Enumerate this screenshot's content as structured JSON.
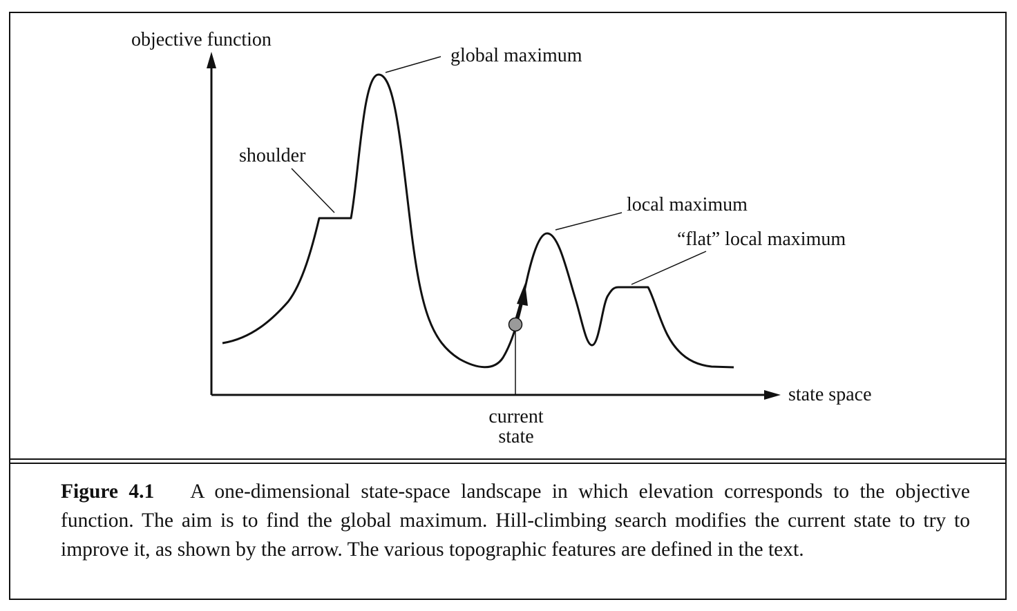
{
  "diagram": {
    "y_axis_label": "objective function",
    "x_axis_label": "state space",
    "annotations": {
      "global_maximum": "global maximum",
      "shoulder": "shoulder",
      "local_maximum": "local maximum",
      "flat_local_maximum": "“flat” local maximum",
      "current_state_line1": "current",
      "current_state_line2": "state"
    },
    "colors": {
      "ink": "#111111",
      "current_state_marker": "#9a9a9a"
    }
  },
  "caption": {
    "label": "Figure 4.1",
    "text": "A one-dimensional state-space landscape in which elevation corresponds to the objective function. The aim is to find the global maximum. Hill-climbing search modifies the current state to try to improve it, as shown by the arrow. The various topographic features are defined in the text."
  }
}
